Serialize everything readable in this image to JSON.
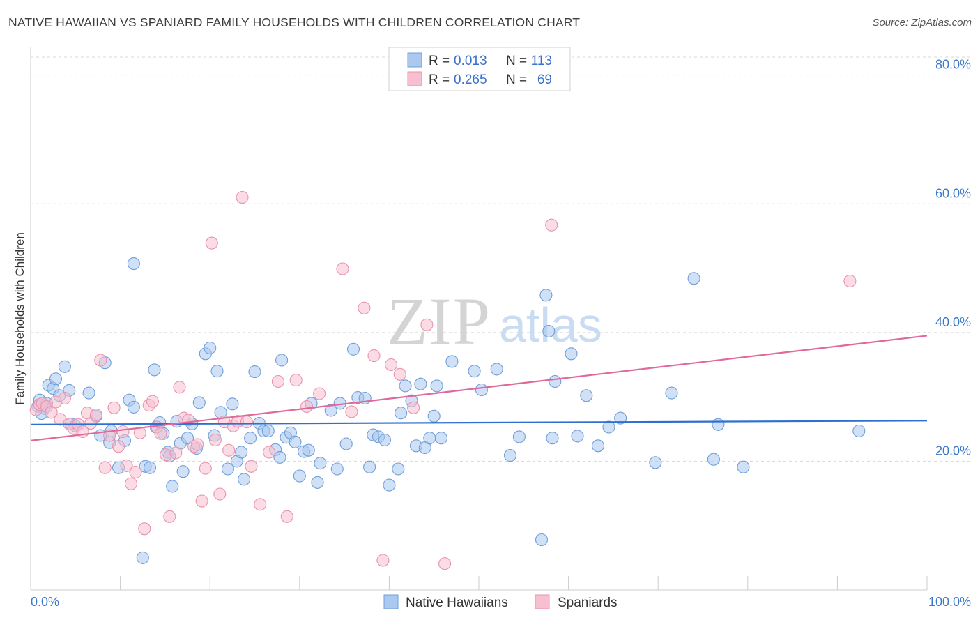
{
  "title": "NATIVE HAWAIIAN VS SPANIARD FAMILY HOUSEHOLDS WITH CHILDREN CORRELATION CHART",
  "source": "Source: ZipAtlas.com",
  "watermark": {
    "zip": "ZIP",
    "atlas": "atlas"
  },
  "colors": {
    "blue_fill": "#aac8f0",
    "blue_stroke": "#6f9fd8",
    "blue_line": "#2f6fd0",
    "pink_fill": "#f7bfd0",
    "pink_stroke": "#e893ae",
    "pink_line": "#e0689a",
    "grid": "#d8d8d8",
    "axis_text": "#3b78c9"
  },
  "legend": {
    "rows": [
      {
        "r_label": "R =",
        "r_value": "0.013",
        "n_label": "N =",
        "n_value": "113"
      },
      {
        "r_label": "R =",
        "r_value": "0.265",
        "n_label": "N =",
        "n_value": "69"
      }
    ]
  },
  "bottom_legend": [
    "Native Hawaiians",
    "Spaniards"
  ],
  "chart_data": {
    "type": "scatter",
    "title": "NATIVE HAWAIIAN VS SPANIARD FAMILY HOUSEHOLDS WITH CHILDREN CORRELATION CHART",
    "xlabel": "",
    "ylabel": "Family Households with Children",
    "xlim": [
      0,
      100
    ],
    "ylim": [
      0,
      83
    ],
    "x_tick_labels": [
      "0.0%",
      "100.0%"
    ],
    "y_ticks": [
      20,
      40,
      60,
      80
    ],
    "y_tick_labels": [
      "20.0%",
      "40.0%",
      "60.0%",
      "80.0%"
    ],
    "grid": true,
    "legend_position": "top-center",
    "series": [
      {
        "name": "Native Hawaiians",
        "color": "#aac8f0",
        "trend": {
          "x": [
            0,
            100
          ],
          "y": [
            25.7,
            26.3
          ]
        },
        "points": [
          [
            0.8,
            28.5
          ],
          [
            1.0,
            29.5
          ],
          [
            1.5,
            28.2
          ],
          [
            1.2,
            27.4
          ],
          [
            1.8,
            29.0
          ],
          [
            2.0,
            31.8
          ],
          [
            2.5,
            31.3
          ],
          [
            2.8,
            32.8
          ],
          [
            3.2,
            30.2
          ],
          [
            3.8,
            34.7
          ],
          [
            4.3,
            31.0
          ],
          [
            4.5,
            25.8
          ],
          [
            5.0,
            25.5
          ],
          [
            6.5,
            30.6
          ],
          [
            7.3,
            27.0
          ],
          [
            7.8,
            24.0
          ],
          [
            8.3,
            35.3
          ],
          [
            8.8,
            22.9
          ],
          [
            9.0,
            24.7
          ],
          [
            9.8,
            19.0
          ],
          [
            10.5,
            23.2
          ],
          [
            11.0,
            29.5
          ],
          [
            11.5,
            50.7
          ],
          [
            11.5,
            28.4
          ],
          [
            12.5,
            5.0
          ],
          [
            12.8,
            19.2
          ],
          [
            13.3,
            19.0
          ],
          [
            13.8,
            34.2
          ],
          [
            14.0,
            25.3
          ],
          [
            14.4,
            26.0
          ],
          [
            14.8,
            24.3
          ],
          [
            15.3,
            21.4
          ],
          [
            15.5,
            20.8
          ],
          [
            15.8,
            16.1
          ],
          [
            16.3,
            26.2
          ],
          [
            16.7,
            22.8
          ],
          [
            17.0,
            18.4
          ],
          [
            17.5,
            23.6
          ],
          [
            18.0,
            25.8
          ],
          [
            18.5,
            22.0
          ],
          [
            18.8,
            29.1
          ],
          [
            19.5,
            36.7
          ],
          [
            20.0,
            37.6
          ],
          [
            20.5,
            24.0
          ],
          [
            20.8,
            34.0
          ],
          [
            21.2,
            27.6
          ],
          [
            22.0,
            18.8
          ],
          [
            22.5,
            28.9
          ],
          [
            23.0,
            20.0
          ],
          [
            23.5,
            21.4
          ],
          [
            23.8,
            17.2
          ],
          [
            24.5,
            23.6
          ],
          [
            25.0,
            33.9
          ],
          [
            25.5,
            25.9
          ],
          [
            26.0,
            24.7
          ],
          [
            26.5,
            24.7
          ],
          [
            27.3,
            21.8
          ],
          [
            27.8,
            20.6
          ],
          [
            28.0,
            35.7
          ],
          [
            28.5,
            23.7
          ],
          [
            29.0,
            24.4
          ],
          [
            29.5,
            23.0
          ],
          [
            30.0,
            17.7
          ],
          [
            30.5,
            21.5
          ],
          [
            31.0,
            21.7
          ],
          [
            31.3,
            29.0
          ],
          [
            32.0,
            16.7
          ],
          [
            32.3,
            19.7
          ],
          [
            33.5,
            27.9
          ],
          [
            34.2,
            18.8
          ],
          [
            34.5,
            29.0
          ],
          [
            35.2,
            22.7
          ],
          [
            36.0,
            37.4
          ],
          [
            36.5,
            29.9
          ],
          [
            37.3,
            29.8
          ],
          [
            37.8,
            19.1
          ],
          [
            38.2,
            24.1
          ],
          [
            38.8,
            23.8
          ],
          [
            39.5,
            23.3
          ],
          [
            40.0,
            16.3
          ],
          [
            41.0,
            18.8
          ],
          [
            41.3,
            27.5
          ],
          [
            41.8,
            31.7
          ],
          [
            42.5,
            29.4
          ],
          [
            43.0,
            22.4
          ],
          [
            43.5,
            32.0
          ],
          [
            44.0,
            22.1
          ],
          [
            44.5,
            23.6
          ],
          [
            45.0,
            27.0
          ],
          [
            45.3,
            31.7
          ],
          [
            45.8,
            23.6
          ],
          [
            47.0,
            35.5
          ],
          [
            49.5,
            34.0
          ],
          [
            50.3,
            31.1
          ],
          [
            52.0,
            34.3
          ],
          [
            53.5,
            20.9
          ],
          [
            54.5,
            23.8
          ],
          [
            57.0,
            7.8
          ],
          [
            57.5,
            45.8
          ],
          [
            57.8,
            40.2
          ],
          [
            58.2,
            23.6
          ],
          [
            58.5,
            32.4
          ],
          [
            60.3,
            36.7
          ],
          [
            61.0,
            23.9
          ],
          [
            62.0,
            30.2
          ],
          [
            63.3,
            22.4
          ],
          [
            64.5,
            25.3
          ],
          [
            65.8,
            26.7
          ],
          [
            69.7,
            19.8
          ],
          [
            71.5,
            30.6
          ],
          [
            74.0,
            48.4
          ],
          [
            76.2,
            20.3
          ],
          [
            76.7,
            25.7
          ],
          [
            79.5,
            19.1
          ],
          [
            92.4,
            24.7
          ]
        ]
      },
      {
        "name": "Spaniards",
        "color": "#f7bfd0",
        "trend": {
          "x": [
            0,
            100
          ],
          "y": [
            23.2,
            39.5
          ]
        },
        "points": [
          [
            0.6,
            28.0
          ],
          [
            1.0,
            28.8
          ],
          [
            1.3,
            29.0
          ],
          [
            1.8,
            28.5
          ],
          [
            2.3,
            27.6
          ],
          [
            2.8,
            29.2
          ],
          [
            3.3,
            26.5
          ],
          [
            3.8,
            29.8
          ],
          [
            4.3,
            25.8
          ],
          [
            4.8,
            25.1
          ],
          [
            5.3,
            25.7
          ],
          [
            5.8,
            24.6
          ],
          [
            6.3,
            27.5
          ],
          [
            6.7,
            25.9
          ],
          [
            7.3,
            27.2
          ],
          [
            7.8,
            35.7
          ],
          [
            8.3,
            19.0
          ],
          [
            8.8,
            24.0
          ],
          [
            9.3,
            28.3
          ],
          [
            9.8,
            22.3
          ],
          [
            10.3,
            24.6
          ],
          [
            10.7,
            19.3
          ],
          [
            11.2,
            16.5
          ],
          [
            11.7,
            18.3
          ],
          [
            12.2,
            24.4
          ],
          [
            12.7,
            9.5
          ],
          [
            13.2,
            28.7
          ],
          [
            13.6,
            29.3
          ],
          [
            14.1,
            25.3
          ],
          [
            14.5,
            24.3
          ],
          [
            15.1,
            21.0
          ],
          [
            15.5,
            11.4
          ],
          [
            16.2,
            21.3
          ],
          [
            16.6,
            31.5
          ],
          [
            17.1,
            26.7
          ],
          [
            17.6,
            26.4
          ],
          [
            18.2,
            22.3
          ],
          [
            18.6,
            22.6
          ],
          [
            19.1,
            13.8
          ],
          [
            19.5,
            18.9
          ],
          [
            20.2,
            53.9
          ],
          [
            20.6,
            23.3
          ],
          [
            21.1,
            14.9
          ],
          [
            21.6,
            26.1
          ],
          [
            22.1,
            21.7
          ],
          [
            22.6,
            25.5
          ],
          [
            23.1,
            26.2
          ],
          [
            23.6,
            61.0
          ],
          [
            24.1,
            26.1
          ],
          [
            24.6,
            19.2
          ],
          [
            25.6,
            13.3
          ],
          [
            26.6,
            21.4
          ],
          [
            27.6,
            32.4
          ],
          [
            28.6,
            11.4
          ],
          [
            29.6,
            32.6
          ],
          [
            30.8,
            28.5
          ],
          [
            32.2,
            30.5
          ],
          [
            34.8,
            49.9
          ],
          [
            35.8,
            27.7
          ],
          [
            37.2,
            43.8
          ],
          [
            38.3,
            36.4
          ],
          [
            39.3,
            4.6
          ],
          [
            40.2,
            35.0
          ],
          [
            41.2,
            33.5
          ],
          [
            42.7,
            28.3
          ],
          [
            44.2,
            41.2
          ],
          [
            46.2,
            4.1
          ],
          [
            58.1,
            56.7
          ],
          [
            91.4,
            48.0
          ]
        ]
      }
    ]
  }
}
